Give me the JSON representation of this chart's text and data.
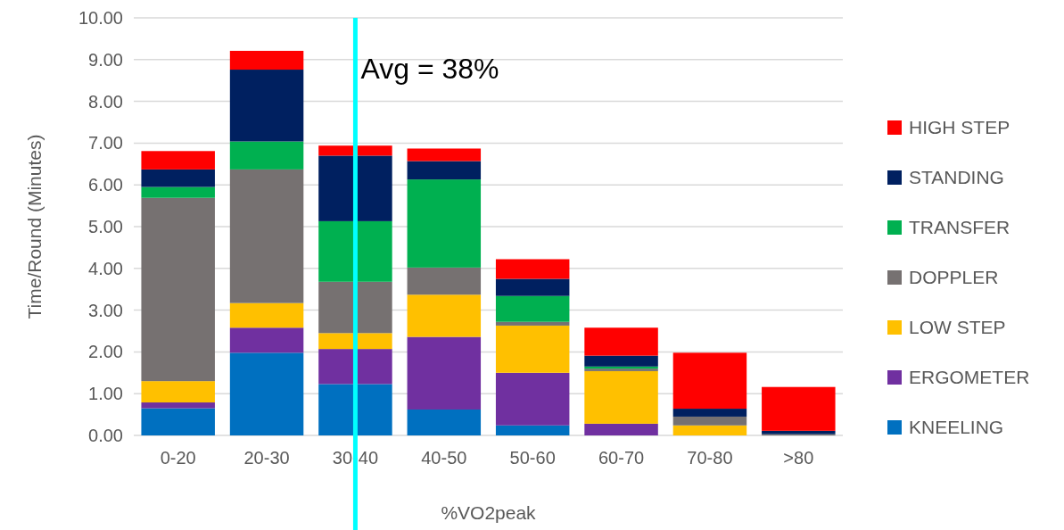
{
  "chart_data": {
    "type": "bar",
    "stacked": true,
    "xlabel": "%VO2peak",
    "ylabel": "Time/Round (Minutes)",
    "categories": [
      "0-20",
      "20-30",
      "30-40",
      "40-50",
      "50-60",
      "60-70",
      "70-80",
      ">80"
    ],
    "series": [
      {
        "name": "KNEELING",
        "color": "#0070c0",
        "values": [
          0.65,
          1.98,
          1.23,
          0.62,
          0.24,
          0,
          0,
          0
        ]
      },
      {
        "name": "ERGOMETER",
        "color": "#7030a0",
        "values": [
          0.14,
          0.6,
          0.84,
          1.74,
          1.26,
          0.28,
          0,
          0
        ]
      },
      {
        "name": "LOW STEP",
        "color": "#ffc000",
        "values": [
          0.51,
          0.59,
          0.38,
          1.01,
          1.13,
          1.26,
          0.24,
          0
        ]
      },
      {
        "name": "DOPPLER",
        "color": "#767171",
        "values": [
          4.39,
          3.2,
          1.23,
          0.65,
          0.09,
          0.06,
          0.21,
          0.03
        ]
      },
      {
        "name": "TRANSFER",
        "color": "#00b050",
        "values": [
          0.26,
          0.67,
          1.45,
          2.11,
          0.62,
          0.05,
          0,
          0
        ]
      },
      {
        "name": "STANDING",
        "color": "#002060",
        "values": [
          0.42,
          1.72,
          1.57,
          0.44,
          0.41,
          0.26,
          0.19,
          0.08
        ]
      },
      {
        "name": "HIGH STEP",
        "color": "#ff0000",
        "values": [
          0.44,
          0.45,
          0.24,
          0.3,
          0.47,
          0.67,
          1.34,
          1.05
        ]
      }
    ],
    "ylim": [
      0,
      10
    ],
    "yticks": [
      {
        "value": 0,
        "label": "0.00"
      },
      {
        "value": 1,
        "label": "1.00"
      },
      {
        "value": 2,
        "label": "2.00"
      },
      {
        "value": 3,
        "label": "3.00"
      },
      {
        "value": 4,
        "label": "4.00"
      },
      {
        "value": 5,
        "label": "5.00"
      },
      {
        "value": 6,
        "label": "6.00"
      },
      {
        "value": 7,
        "label": "7.00"
      },
      {
        "value": 8,
        "label": "8.00"
      },
      {
        "value": 9,
        "label": "9.00"
      },
      {
        "value": 10,
        "label": "10.00"
      }
    ],
    "grid": "y",
    "legend": "right",
    "ref_lines": [
      {
        "axis": "x",
        "value": "30-40",
        "label": "Avg = 38%",
        "color": "#00ffff"
      }
    ]
  }
}
